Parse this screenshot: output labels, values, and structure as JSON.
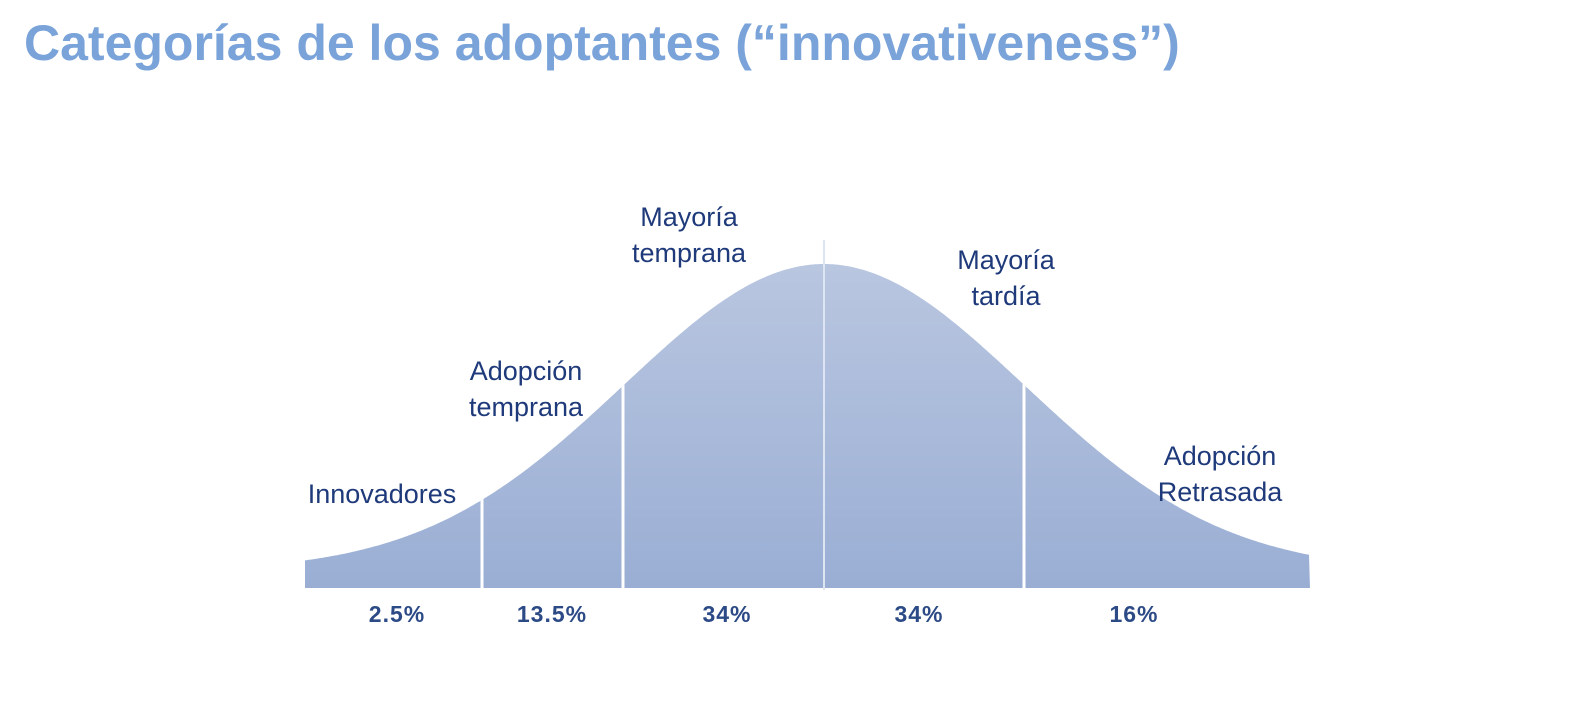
{
  "slide": {
    "title": "Categorías de los adoptantes (“innovativeness”)"
  },
  "diagram": {
    "categories": [
      {
        "line1": "Innovadores",
        "line2": "",
        "pct": "2.5%"
      },
      {
        "line1": "Adopción",
        "line2": "temprana",
        "pct": "13.5%"
      },
      {
        "line1": "Mayoría",
        "line2": "temprana",
        "pct": "34%"
      },
      {
        "line1": "Mayoría",
        "line2": "tardía",
        "pct": "34%"
      },
      {
        "line1": "Adopción",
        "line2": "Retrasada",
        "pct": "16%"
      }
    ],
    "colors": {
      "title": "#7aa3d9",
      "curve_fill_top": "#b9c6e0",
      "curve_fill_bottom": "#9aaed4",
      "divider": "#ffffff",
      "label_text": "#1f3a7a",
      "percent_text": "#2c4a86"
    }
  }
}
